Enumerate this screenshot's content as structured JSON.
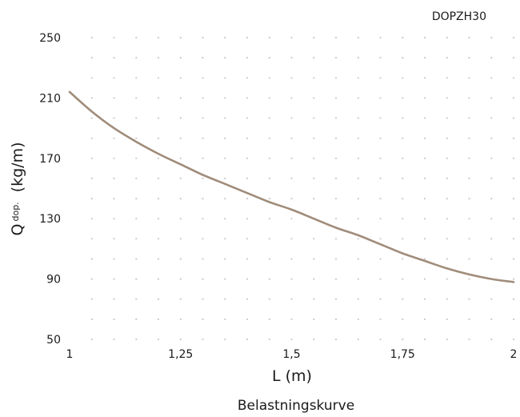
{
  "chart_data": {
    "type": "line",
    "title": "DOPZH30",
    "caption": "Belastningskurve",
    "xlabel": "L (m)",
    "ylabel_main": "Q",
    "ylabel_sub": "dop.",
    "ylabel_unit": "(kg/m)",
    "xlim": [
      1,
      2
    ],
    "ylim": [
      50,
      250
    ],
    "xticks": [
      1,
      1.25,
      1.5,
      1.75,
      2
    ],
    "xtick_labels": [
      "1",
      "1,25",
      "1,5",
      "1,75",
      "2"
    ],
    "yticks": [
      50,
      90,
      130,
      170,
      210,
      250
    ],
    "ytick_labels": [
      "50",
      "90",
      "130",
      "170",
      "210",
      "250"
    ],
    "grid": "dotted",
    "series": [
      {
        "color": "#a08c7a",
        "x": [
          1.0,
          1.05,
          1.1,
          1.15,
          1.2,
          1.25,
          1.3,
          1.35,
          1.4,
          1.45,
          1.5,
          1.55,
          1.6,
          1.65,
          1.7,
          1.75,
          1.8,
          1.85,
          1.9,
          1.95,
          2.0
        ],
        "y": [
          214,
          201,
          190,
          181,
          173,
          166,
          159,
          153,
          147,
          141,
          136,
          130,
          124,
          119,
          113,
          107,
          102,
          97,
          93,
          90,
          88
        ]
      }
    ]
  }
}
